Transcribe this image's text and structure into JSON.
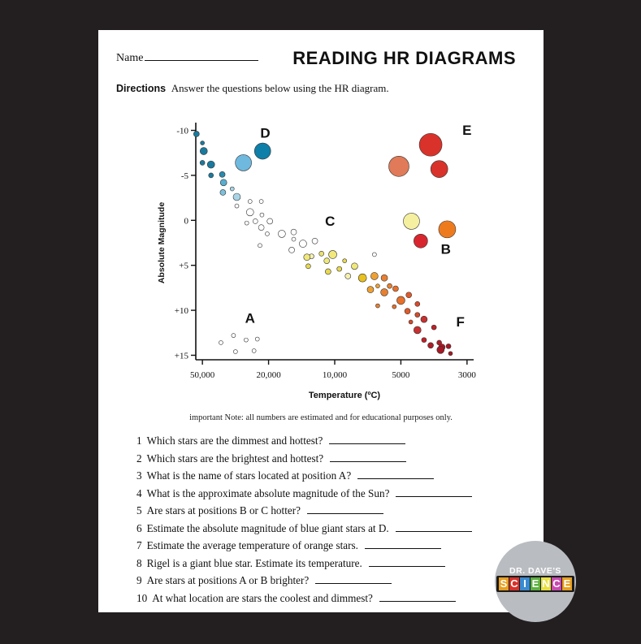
{
  "worksheet": {
    "name_label": "Name",
    "title": "READING HR DIAGRAMS",
    "directions_label": "Directions",
    "directions_text": "Answer the questions below using the HR diagram.",
    "note": "important Note: all numbers are estimated and for educational purposes only."
  },
  "chart_data": {
    "type": "scatter",
    "xlabel": "Temperature (ºC)",
    "ylabel": "Absolute Magnitude",
    "x_ticks": [
      "50,000",
      "20,000",
      "10,000",
      "5000",
      "3000"
    ],
    "y_ticks": [
      "-10",
      "-5",
      "0",
      "+5",
      "+10",
      "+15"
    ],
    "y_values": [
      -10,
      -5,
      0,
      5,
      10,
      15
    ],
    "x_tick_index": [
      0,
      1,
      2,
      3,
      4
    ],
    "xlim": [
      -0.1,
      4.1
    ],
    "ylim": [
      -10.5,
      15.5
    ],
    "region_labels": [
      {
        "label": "A",
        "x": 0.72,
        "y": 11.4
      },
      {
        "label": "B",
        "x": 3.68,
        "y": 3.7
      },
      {
        "label": "C",
        "x": 1.93,
        "y": 0.6
      },
      {
        "label": "D",
        "x": 0.95,
        "y": -9.2
      },
      {
        "label": "E",
        "x": 4.0,
        "y": -9.5
      },
      {
        "label": "F",
        "x": 3.9,
        "y": 11.8
      }
    ],
    "points": [
      {
        "x": -0.09,
        "y": -9.6,
        "r": 3.5,
        "c": "#1a7a9e"
      },
      {
        "x": 0.0,
        "y": -8.6,
        "r": 2.5,
        "c": "#1a7a9e"
      },
      {
        "x": 0.02,
        "y": -7.7,
        "r": 4.5,
        "c": "#1a7a9e"
      },
      {
        "x": 0.0,
        "y": -6.4,
        "r": 3,
        "c": "#1a7a9e"
      },
      {
        "x": 0.13,
        "y": -6.2,
        "r": 4.5,
        "c": "#1a7a9e"
      },
      {
        "x": 0.13,
        "y": -5.0,
        "r": 3,
        "c": "#1a7a9e"
      },
      {
        "x": 0.3,
        "y": -5.1,
        "r": 3.5,
        "c": "#2a8aad"
      },
      {
        "x": 0.32,
        "y": -4.2,
        "r": 4,
        "c": "#5aaed0"
      },
      {
        "x": 0.31,
        "y": -3.1,
        "r": 3.5,
        "c": "#7cc0dc"
      },
      {
        "x": 0.45,
        "y": -3.5,
        "r": 2.5,
        "c": "#a8d4e6"
      },
      {
        "x": 0.52,
        "y": -2.6,
        "r": 4.5,
        "c": "#a8d4e6"
      },
      {
        "x": 0.52,
        "y": -1.6,
        "r": 2.5,
        "c": "#ffffff"
      },
      {
        "x": 0.72,
        "y": -2.1,
        "r": 2.5,
        "c": "#ffffff"
      },
      {
        "x": 0.89,
        "y": -2.1,
        "r": 2.5,
        "c": "#ffffff"
      },
      {
        "x": 0.72,
        "y": -0.9,
        "r": 4.5,
        "c": "#ffffff"
      },
      {
        "x": 0.9,
        "y": -0.6,
        "r": 2.5,
        "c": "#ffffff"
      },
      {
        "x": 0.67,
        "y": 0.3,
        "r": 2.5,
        "c": "#ffffff"
      },
      {
        "x": 0.8,
        "y": 0.1,
        "r": 3,
        "c": "#ffffff"
      },
      {
        "x": 0.89,
        "y": 0.8,
        "r": 3.5,
        "c": "#ffffff"
      },
      {
        "x": 1.02,
        "y": 0.1,
        "r": 3.5,
        "c": "#ffffff"
      },
      {
        "x": 0.98,
        "y": 1.5,
        "r": 2.5,
        "c": "#ffffff"
      },
      {
        "x": 1.2,
        "y": 1.5,
        "r": 4.5,
        "c": "#ffffff"
      },
      {
        "x": 1.38,
        "y": 1.3,
        "r": 3.5,
        "c": "#ffffff"
      },
      {
        "x": 1.38,
        "y": 2.1,
        "r": 2.5,
        "c": "#ffffff"
      },
      {
        "x": 0.87,
        "y": 2.8,
        "r": 2.5,
        "c": "#ffffff"
      },
      {
        "x": 1.35,
        "y": 3.3,
        "r": 3.5,
        "c": "#ffffff"
      },
      {
        "x": 1.52,
        "y": 2.6,
        "r": 4.5,
        "c": "#ffffff"
      },
      {
        "x": 1.7,
        "y": 2.3,
        "r": 3.5,
        "c": "#ffffff"
      },
      {
        "x": 1.65,
        "y": 4.0,
        "r": 3,
        "c": "#f5f0b0"
      },
      {
        "x": 1.58,
        "y": 4.1,
        "r": 4,
        "c": "#f0e87a"
      },
      {
        "x": 1.8,
        "y": 3.7,
        "r": 3,
        "c": "#e9e070"
      },
      {
        "x": 1.88,
        "y": 4.5,
        "r": 3.5,
        "c": "#f0e87a"
      },
      {
        "x": 1.6,
        "y": 5.1,
        "r": 3,
        "c": "#e8d850"
      },
      {
        "x": 1.97,
        "y": 3.8,
        "r": 5,
        "c": "#f0e87a"
      },
      {
        "x": 1.9,
        "y": 5.7,
        "r": 3.5,
        "c": "#e8d850"
      },
      {
        "x": 2.15,
        "y": 4.5,
        "r": 2.5,
        "c": "#e8d850"
      },
      {
        "x": 2.07,
        "y": 5.4,
        "r": 3,
        "c": "#e8d850"
      },
      {
        "x": 2.2,
        "y": 6.2,
        "r": 3.5,
        "c": "#f5f0b0"
      },
      {
        "x": 2.3,
        "y": 5.1,
        "r": 4,
        "c": "#f0e87a"
      },
      {
        "x": 2.42,
        "y": 6.4,
        "r": 5,
        "c": "#e8c020"
      },
      {
        "x": 2.6,
        "y": 3.8,
        "r": 2.5,
        "c": "#ffffff"
      },
      {
        "x": 2.6,
        "y": 6.2,
        "r": 4.5,
        "c": "#f0a030"
      },
      {
        "x": 2.54,
        "y": 7.7,
        "r": 4,
        "c": "#f0a030"
      },
      {
        "x": 2.65,
        "y": 7.3,
        "r": 2.5,
        "c": "#f0a030"
      },
      {
        "x": 2.75,
        "y": 6.4,
        "r": 4,
        "c": "#e88030"
      },
      {
        "x": 2.75,
        "y": 8.0,
        "r": 4.5,
        "c": "#e88030"
      },
      {
        "x": 2.83,
        "y": 7.3,
        "r": 3,
        "c": "#e88030"
      },
      {
        "x": 2.65,
        "y": 9.5,
        "r": 2.5,
        "c": "#e88030"
      },
      {
        "x": 2.92,
        "y": 7.6,
        "r": 3.5,
        "c": "#e8702a"
      },
      {
        "x": 3.0,
        "y": 8.9,
        "r": 5,
        "c": "#e8702a"
      },
      {
        "x": 2.9,
        "y": 9.6,
        "r": 2.5,
        "c": "#e8702a"
      },
      {
        "x": 3.12,
        "y": 8.3,
        "r": 3.5,
        "c": "#e05a2a"
      },
      {
        "x": 3.1,
        "y": 10.1,
        "r": 3.5,
        "c": "#e05a2a"
      },
      {
        "x": 3.25,
        "y": 9.3,
        "r": 3,
        "c": "#d84a2a"
      },
      {
        "x": 3.25,
        "y": 10.5,
        "r": 3,
        "c": "#d84a2a"
      },
      {
        "x": 3.15,
        "y": 11.3,
        "r": 2.5,
        "c": "#d84a2a"
      },
      {
        "x": 3.35,
        "y": 11.0,
        "r": 4,
        "c": "#c83030"
      },
      {
        "x": 3.25,
        "y": 12.2,
        "r": 4.5,
        "c": "#c83030"
      },
      {
        "x": 3.5,
        "y": 11.9,
        "r": 3,
        "c": "#c02028"
      },
      {
        "x": 3.35,
        "y": 13.3,
        "r": 3,
        "c": "#c02028"
      },
      {
        "x": 3.45,
        "y": 13.9,
        "r": 3.5,
        "c": "#b01c26"
      },
      {
        "x": 3.58,
        "y": 13.6,
        "r": 3,
        "c": "#b01c26"
      },
      {
        "x": 3.62,
        "y": 14.1,
        "r": 4,
        "c": "#a81824"
      },
      {
        "x": 3.6,
        "y": 14.4,
        "r": 4.5,
        "c": "#a81824"
      },
      {
        "x": 3.72,
        "y": 14.0,
        "r": 3,
        "c": "#a81824"
      },
      {
        "x": 3.75,
        "y": 14.8,
        "r": 2.5,
        "c": "#a81824"
      },
      {
        "x": 0.47,
        "y": 12.8,
        "r": 2.5,
        "c": "#ffffff"
      },
      {
        "x": 0.28,
        "y": 13.6,
        "r": 2.5,
        "c": "#ffffff"
      },
      {
        "x": 0.66,
        "y": 13.3,
        "r": 2.5,
        "c": "#ffffff"
      },
      {
        "x": 0.83,
        "y": 13.2,
        "r": 2.5,
        "c": "#ffffff"
      },
      {
        "x": 0.5,
        "y": 14.6,
        "r": 2.5,
        "c": "#ffffff"
      },
      {
        "x": 0.78,
        "y": 14.5,
        "r": 2.5,
        "c": "#ffffff"
      },
      {
        "x": 0.91,
        "y": -7.7,
        "r": 10,
        "c": "#0e7fa8"
      },
      {
        "x": 0.62,
        "y": -6.4,
        "r": 10,
        "c": "#6fb8de"
      },
      {
        "x": 3.45,
        "y": -8.4,
        "r": 14,
        "c": "#d9322a"
      },
      {
        "x": 3.58,
        "y": -5.7,
        "r": 10.5,
        "c": "#d9322a"
      },
      {
        "x": 2.97,
        "y": -6.0,
        "r": 12.5,
        "c": "#e07a58"
      },
      {
        "x": 3.16,
        "y": 0.1,
        "r": 10,
        "c": "#f5f0a0"
      },
      {
        "x": 3.7,
        "y": 1.0,
        "r": 10.5,
        "c": "#ee7a1e"
      },
      {
        "x": 3.3,
        "y": 2.3,
        "r": 8.5,
        "c": "#d9262e"
      }
    ]
  },
  "questions": [
    {
      "num": "1",
      "text": "Which stars are the dimmest and hottest?"
    },
    {
      "num": "2",
      "text": "Which stars are the brightest and hottest?"
    },
    {
      "num": "3",
      "text": "What is the name of stars located at position A?"
    },
    {
      "num": "4",
      "text": "What is the approximate absolute magnitude of the Sun?"
    },
    {
      "num": "5",
      "text": "Are stars at positions B or C hotter?"
    },
    {
      "num": "6",
      "text": "Estimate the absolute magnitude of blue giant stars at D."
    },
    {
      "num": "7",
      "text": "Estimate the average temperature of orange stars."
    },
    {
      "num": "8",
      "text": "Rigel is a giant blue star. Estimate its temperature."
    },
    {
      "num": "9",
      "text": "Are stars at positions A or B brighter?"
    },
    {
      "num": "10",
      "text": "At what location are stars the coolest and dimmest?"
    }
  ],
  "badge": {
    "top_text": "DR. DAVE'S",
    "logo_text": "SCIENCE",
    "logo_colors": [
      "#e8a020",
      "#d8322a",
      "#3a8ad0",
      "#5cb040",
      "#e8e040",
      "#c84ab0"
    ]
  }
}
